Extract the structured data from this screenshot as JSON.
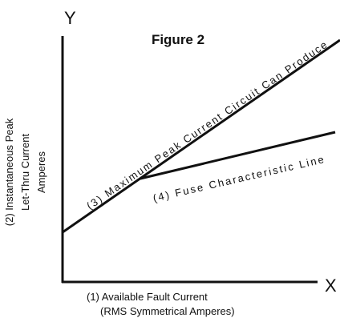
{
  "title": "Figure 2",
  "y_axis": {
    "letter": "Y",
    "label": [
      "(2) Instantaneous Peak",
      "Let-Thru Current",
      "Amperes"
    ]
  },
  "x_axis": {
    "letter": "X",
    "label": [
      "(1) Available Fault Current",
      "(RMS Symmetrical Amperes)"
    ]
  },
  "lines": [
    {
      "label": "(3) Maximum Peak Current Circuit Can Produce"
    },
    {
      "label": "(4) Fuse Characteristic Line"
    }
  ]
}
